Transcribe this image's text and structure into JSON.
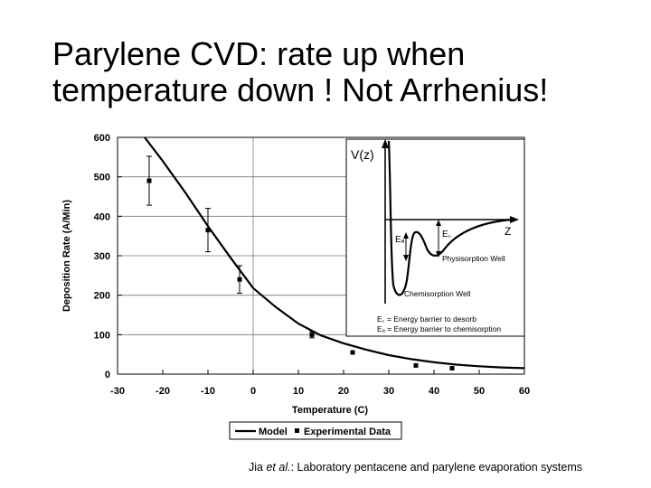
{
  "slide": {
    "title_line1": "Parylene CVD: rate up when",
    "title_line2": "temperature down ! Not Arrhenius!",
    "citation_authors": "Jia",
    "citation_etal": "et al.",
    "citation_rest": ": Laboratory pentacene and parylene evaporation systems"
  },
  "chart_data": {
    "type": "scatter",
    "xlabel": "Temperature (C)",
    "ylabel": "Deposition Rate (A/Min)",
    "xlim": [
      -30,
      60
    ],
    "ylim": [
      0,
      600
    ],
    "xticks": [
      -30,
      -20,
      -10,
      0,
      10,
      20,
      30,
      40,
      50,
      60
    ],
    "yticks": [
      0,
      100,
      200,
      300,
      400,
      500,
      600
    ],
    "grid": true,
    "legend_position": "bottom",
    "series": [
      {
        "name": "Model",
        "kind": "line",
        "x": [
          -24,
          -20,
          -15,
          -10,
          -5,
          0,
          5,
          10,
          15,
          20,
          25,
          30,
          35,
          40,
          45,
          50,
          55,
          60
        ],
        "y": [
          600,
          540,
          460,
          375,
          295,
          218,
          170,
          128,
          98,
          78,
          62,
          48,
          38,
          30,
          24,
          20,
          17,
          15
        ]
      },
      {
        "name": "Experimental Data",
        "kind": "scatter",
        "x": [
          -23,
          -10,
          -3,
          13,
          22,
          36,
          44
        ],
        "y": [
          490,
          365,
          240,
          100,
          55,
          22,
          15
        ],
        "err": [
          62,
          55,
          35,
          8,
          5,
          3,
          3
        ]
      }
    ],
    "inset": {
      "ylabel": "V(z)",
      "xlabel": "Z",
      "physisorption_label": "Physisorption Well",
      "chemisorption_label": "Chemisorption Well",
      "ea_label": "Eₐ",
      "ed_label": "E꜀",
      "ed_note": "E꜀ = Energy barrier to desorb",
      "ea_note": "Eₐ = Energy barrier to chemisorption"
    }
  }
}
